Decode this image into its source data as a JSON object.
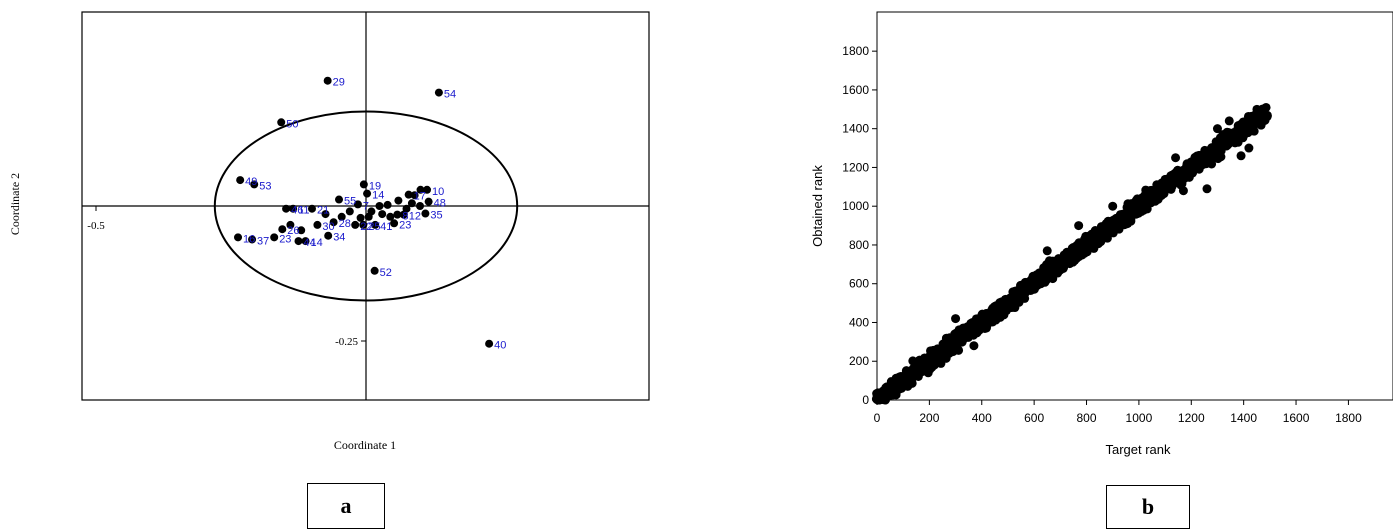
{
  "panels": {
    "a_label": "a",
    "b_label": "b"
  },
  "chart_data": [
    {
      "id": "a",
      "type": "scatter",
      "title": "",
      "xlabel": "Coordinate 1",
      "ylabel": "Coordinate 2",
      "xlim": [
        -0.55,
        0.5
      ],
      "ylim": [
        -0.35,
        0.36
      ],
      "x_tick_labels": [
        {
          "value": -0.5,
          "label": "-0.5"
        }
      ],
      "y_tick_labels": [
        {
          "value": -0.25,
          "label": "-0.25"
        }
      ],
      "point_color": "#000000",
      "label_color": "#1a1acc",
      "ellipse": {
        "center": [
          0.0,
          0.0
        ],
        "radii": [
          0.28,
          0.175
        ]
      },
      "points": [
        {
          "label": "29",
          "x": -0.071,
          "y": 0.232
        },
        {
          "label": "54",
          "x": 0.135,
          "y": 0.21
        },
        {
          "label": "50",
          "x": -0.157,
          "y": 0.155
        },
        {
          "label": "49",
          "x": -0.233,
          "y": 0.048
        },
        {
          "label": "53",
          "x": -0.207,
          "y": 0.04
        },
        {
          "label": "19",
          "x": -0.004,
          "y": 0.04
        },
        {
          "label": "14",
          "x": 0.002,
          "y": 0.023
        },
        {
          "label": "17",
          "x": 0.079,
          "y": 0.021
        },
        {
          "label": "10",
          "x": 0.113,
          "y": 0.03
        },
        {
          "label": "55",
          "x": -0.05,
          "y": 0.012
        },
        {
          "label": "7",
          "x": -0.015,
          "y": 0.003
        },
        {
          "label": "48",
          "x": 0.116,
          "y": 0.008
        },
        {
          "label": "46",
          "x": -0.148,
          "y": -0.005
        },
        {
          "label": "11",
          "x": -0.135,
          "y": -0.005
        },
        {
          "label": "21",
          "x": -0.1,
          "y": -0.005
        },
        {
          "label": "35",
          "x": 0.11,
          "y": -0.014
        },
        {
          "label": "8",
          "x": 0.058,
          "y": -0.016
        },
        {
          "label": "12",
          "x": 0.07,
          "y": -0.016
        },
        {
          "label": "28",
          "x": -0.06,
          "y": -0.03
        },
        {
          "label": "30",
          "x": -0.09,
          "y": -0.035
        },
        {
          "label": "22",
          "x": -0.02,
          "y": -0.035
        },
        {
          "label": "25",
          "x": -0.005,
          "y": -0.035
        },
        {
          "label": "41",
          "x": 0.017,
          "y": -0.035
        },
        {
          "label": "23",
          "x": 0.052,
          "y": -0.032
        },
        {
          "label": "26",
          "x": -0.155,
          "y": -0.043
        },
        {
          "label": "16",
          "x": -0.237,
          "y": -0.058
        },
        {
          "label": "37",
          "x": -0.211,
          "y": -0.062
        },
        {
          "label": "23",
          "x": -0.17,
          "y": -0.058
        },
        {
          "label": "44",
          "x": -0.125,
          "y": -0.065
        },
        {
          "label": "14",
          "x": -0.112,
          "y": -0.065
        },
        {
          "label": "34",
          "x": -0.07,
          "y": -0.055
        },
        {
          "label": "52",
          "x": 0.016,
          "y": -0.12
        },
        {
          "label": "40",
          "x": 0.228,
          "y": -0.255
        }
      ],
      "unlabeled_points": [
        {
          "x": 0.09,
          "y": 0.02
        },
        {
          "x": 0.101,
          "y": 0.03
        },
        {
          "x": 0.06,
          "y": 0.01
        },
        {
          "x": 0.04,
          "y": 0.002
        },
        {
          "x": 0.025,
          "y": 0.0
        },
        {
          "x": 0.085,
          "y": 0.005
        },
        {
          "x": 0.1,
          "y": 0.0
        },
        {
          "x": 0.03,
          "y": -0.015
        },
        {
          "x": 0.01,
          "y": -0.01
        },
        {
          "x": -0.03,
          "y": -0.01
        },
        {
          "x": -0.045,
          "y": -0.02
        },
        {
          "x": -0.075,
          "y": -0.015
        },
        {
          "x": -0.14,
          "y": -0.035
        },
        {
          "x": -0.12,
          "y": -0.045
        },
        {
          "x": 0.045,
          "y": -0.02
        },
        {
          "x": -0.01,
          "y": -0.022
        },
        {
          "x": 0.005,
          "y": -0.02
        },
        {
          "x": 0.075,
          "y": -0.005
        }
      ]
    },
    {
      "id": "b",
      "type": "scatter",
      "title": "",
      "xlabel": "Target rank",
      "ylabel": "Obtained rank",
      "xlim": [
        0,
        1900
      ],
      "ylim": [
        0,
        1800
      ],
      "x_ticks": [
        0,
        200,
        400,
        600,
        800,
        1000,
        1200,
        1400,
        1600,
        1800
      ],
      "y_ticks": [
        0,
        200,
        400,
        600,
        800,
        1000,
        1200,
        1400,
        1600,
        1800
      ],
      "point_color": "#000000",
      "series": [
        {
          "x_range": [
            0,
            1485
          ],
          "y_equals_x": true,
          "spread": 40,
          "count": 1500
        }
      ],
      "outliers": [
        {
          "x": 180,
          "y": 210
        },
        {
          "x": 300,
          "y": 420
        },
        {
          "x": 370,
          "y": 280
        },
        {
          "x": 650,
          "y": 770
        },
        {
          "x": 770,
          "y": 900
        },
        {
          "x": 900,
          "y": 1000
        },
        {
          "x": 960,
          "y": 920
        },
        {
          "x": 1140,
          "y": 1250
        },
        {
          "x": 1170,
          "y": 1080
        },
        {
          "x": 1260,
          "y": 1090
        },
        {
          "x": 1300,
          "y": 1400
        },
        {
          "x": 1345,
          "y": 1440
        },
        {
          "x": 1390,
          "y": 1260
        },
        {
          "x": 1420,
          "y": 1300
        },
        {
          "x": 1160,
          "y": 1110
        }
      ]
    }
  ]
}
